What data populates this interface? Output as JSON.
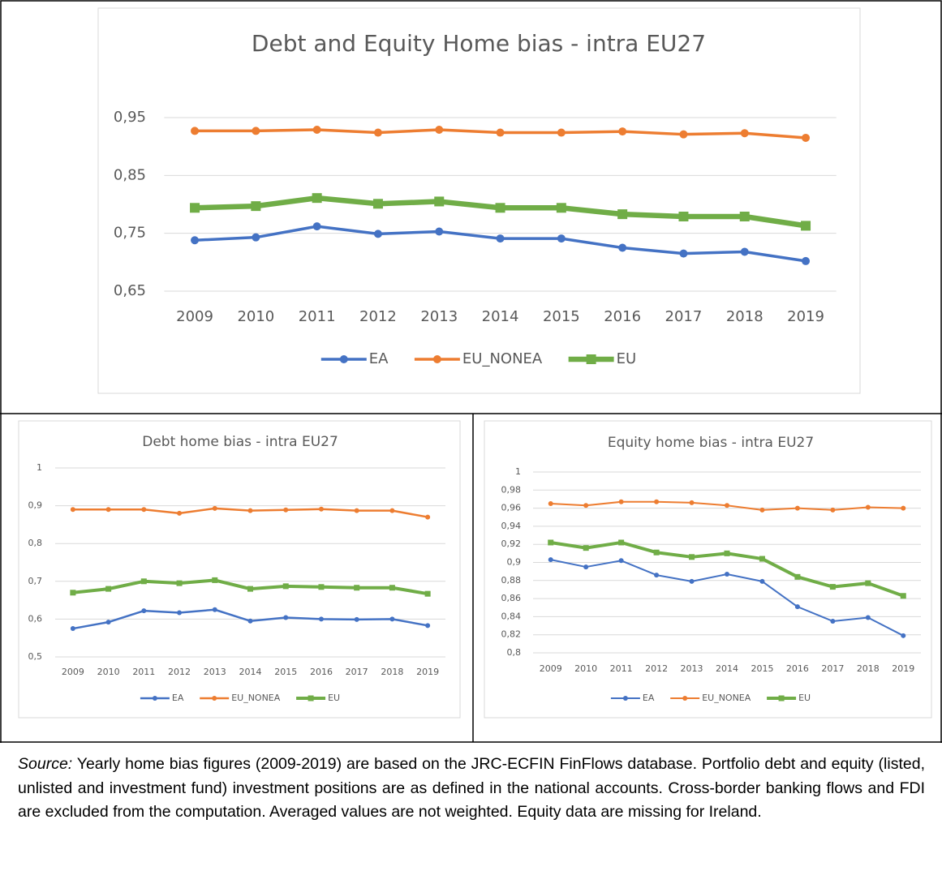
{
  "chart_data": [
    {
      "type": "line",
      "title": "Debt and Equity Home bias - intra EU27",
      "categories": [
        "2009",
        "2010",
        "2011",
        "2012",
        "2013",
        "2014",
        "2015",
        "2016",
        "2017",
        "2018",
        "2019"
      ],
      "series": [
        {
          "name": "EA",
          "color": "#4472c4",
          "values": [
            0.738,
            0.743,
            0.762,
            0.749,
            0.753,
            0.741,
            0.741,
            0.725,
            0.715,
            0.718,
            0.702
          ]
        },
        {
          "name": "EU_NONEA",
          "color": "#ed7d31",
          "values": [
            0.927,
            0.927,
            0.929,
            0.924,
            0.929,
            0.924,
            0.924,
            0.926,
            0.921,
            0.923,
            0.915
          ]
        },
        {
          "name": "EU",
          "color": "#70ad47",
          "values": [
            0.794,
            0.797,
            0.811,
            0.801,
            0.805,
            0.794,
            0.794,
            0.783,
            0.779,
            0.779,
            0.763
          ]
        }
      ],
      "ylim": [
        0.65,
        0.95
      ],
      "yticks": [
        {
          "value": 0.65,
          "label": "0,65"
        },
        {
          "value": 0.75,
          "label": "0,75"
        },
        {
          "value": 0.85,
          "label": "0,85"
        },
        {
          "value": 0.95,
          "label": "0,95"
        }
      ],
      "grid": true,
      "legend": "bottom"
    },
    {
      "type": "line",
      "title": "Debt home bias - intra EU27",
      "categories": [
        "2009",
        "2010",
        "2011",
        "2012",
        "2013",
        "2014",
        "2015",
        "2016",
        "2017",
        "2018",
        "2019"
      ],
      "series": [
        {
          "name": "EA",
          "color": "#4472c4",
          "values": [
            0.575,
            0.592,
            0.622,
            0.617,
            0.625,
            0.595,
            0.604,
            0.6,
            0.599,
            0.6,
            0.583
          ]
        },
        {
          "name": "EU_NONEA",
          "color": "#ed7d31",
          "values": [
            0.89,
            0.89,
            0.89,
            0.88,
            0.893,
            0.887,
            0.889,
            0.891,
            0.887,
            0.887,
            0.87
          ]
        },
        {
          "name": "EU",
          "color": "#70ad47",
          "values": [
            0.67,
            0.68,
            0.7,
            0.695,
            0.703,
            0.68,
            0.687,
            0.685,
            0.683,
            0.683,
            0.667
          ]
        }
      ],
      "ylim": [
        0.5,
        1
      ],
      "yticks": [
        {
          "value": 0.5,
          "label": "0,5"
        },
        {
          "value": 0.6,
          "label": "0,6"
        },
        {
          "value": 0.7,
          "label": "0,7"
        },
        {
          "value": 0.8,
          "label": "0,8"
        },
        {
          "value": 0.9,
          "label": "0,9"
        },
        1
      ],
      "grid": true,
      "legend": "bottom"
    },
    {
      "type": "line",
      "title": "Equity home bias - intra EU27",
      "categories": [
        "2009",
        "2010",
        "2011",
        "2012",
        "2013",
        "2014",
        "2015",
        "2016",
        "2017",
        "2018",
        "2019"
      ],
      "series": [
        {
          "name": "EA",
          "color": "#4472c4",
          "values": [
            0.903,
            0.895,
            0.902,
            0.886,
            0.879,
            0.887,
            0.879,
            0.851,
            0.835,
            0.839,
            0.819
          ]
        },
        {
          "name": "EU_NONEA",
          "color": "#ed7d31",
          "values": [
            0.965,
            0.963,
            0.967,
            0.967,
            0.966,
            0.963,
            0.958,
            0.96,
            0.958,
            0.961,
            0.96
          ]
        },
        {
          "name": "EU",
          "color": "#70ad47",
          "values": [
            0.922,
            0.916,
            0.922,
            0.911,
            0.906,
            0.91,
            0.904,
            0.884,
            0.873,
            0.877,
            0.863
          ]
        }
      ],
      "ylim": [
        0.8,
        1
      ],
      "yticks": [
        {
          "value": 0.8,
          "label": "0,8"
        },
        {
          "value": 0.82,
          "label": "0,82"
        },
        {
          "value": 0.84,
          "label": "0,84"
        },
        {
          "value": 0.86,
          "label": "0,86"
        },
        {
          "value": 0.88,
          "label": "0,88"
        },
        {
          "value": 0.9,
          "label": "0,9"
        },
        {
          "value": 0.92,
          "label": "0,92"
        },
        {
          "value": 0.94,
          "label": "0,94"
        },
        {
          "value": 0.96,
          "label": "0,96"
        },
        {
          "value": 0.98,
          "label": "0,98"
        },
        1
      ],
      "grid": true,
      "legend": "bottom"
    }
  ],
  "source": {
    "label": "Source:",
    "text": "Yearly home bias figures (2009-2019) are based on the JRC-ECFIN FinFlows database. Portfolio debt and equity (listed, unlisted and investment fund) investment positions are as defined in the national accounts. Cross-border banking flows and FDI are excluded from the computation. Averaged values are not weighted. Equity data are missing for Ireland."
  }
}
